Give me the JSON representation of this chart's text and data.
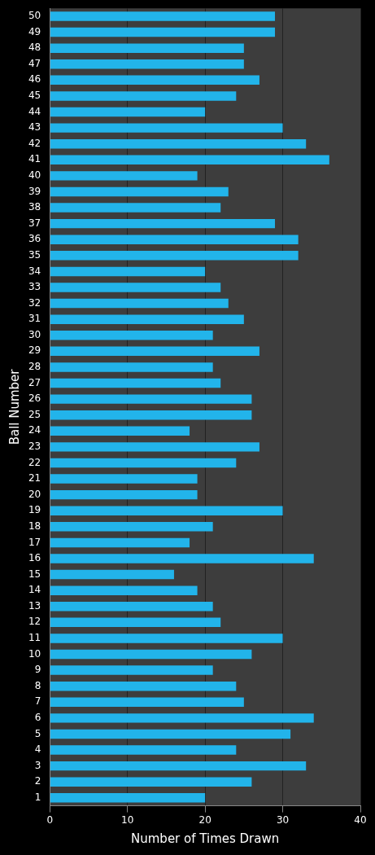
{
  "chart_data": {
    "type": "bar",
    "orientation": "horizontal",
    "xlabel": "Number of Times Drawn",
    "ylabel": "Ball Number",
    "categories": [
      "50",
      "49",
      "48",
      "47",
      "46",
      "45",
      "44",
      "43",
      "42",
      "41",
      "40",
      "39",
      "38",
      "37",
      "36",
      "35",
      "34",
      "33",
      "32",
      "31",
      "30",
      "29",
      "28",
      "27",
      "26",
      "25",
      "24",
      "23",
      "22",
      "21",
      "20",
      "19",
      "18",
      "17",
      "16",
      "15",
      "14",
      "13",
      "12",
      "11",
      "10",
      "9",
      "8",
      "7",
      "6",
      "5",
      "4",
      "3",
      "2",
      "1"
    ],
    "values": [
      29,
      29,
      25,
      25,
      27,
      24,
      20,
      30,
      33,
      36,
      19,
      23,
      22,
      29,
      32,
      32,
      20,
      22,
      23,
      25,
      21,
      27,
      21,
      22,
      26,
      26,
      18,
      27,
      24,
      19,
      19,
      30,
      21,
      18,
      34,
      16,
      19,
      21,
      22,
      30,
      26,
      21,
      24,
      25,
      34,
      31,
      24,
      33,
      26,
      20
    ],
    "color": "#22b4ea",
    "xlim": [
      0,
      40
    ],
    "xticks": [
      0,
      10,
      20,
      30,
      40
    ],
    "grid": "x",
    "legend": false
  }
}
